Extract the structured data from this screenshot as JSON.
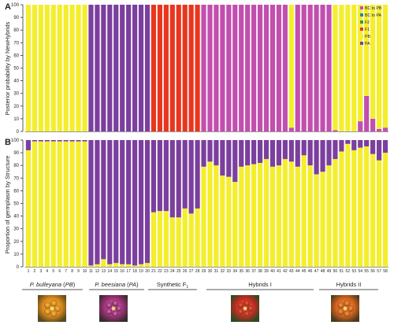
{
  "figure": {
    "group_labels": [
      {
        "name": "P. bulleyana",
        "abbr": "PB",
        "subscript": ""
      },
      {
        "name": "P. beesiana",
        "abbr": "PA",
        "subscript": ""
      },
      {
        "name": "Synthetic F",
        "abbr": "",
        "subscript": "1"
      },
      {
        "name": "Hybrids I",
        "abbr": "",
        "subscript": ""
      },
      {
        "name": "Hybrids II",
        "abbr": "",
        "subscript": ""
      }
    ],
    "photos": [
      {
        "icon": "yellow-orange-primula-flower-photo"
      },
      {
        "icon": "purple-primula-flower-photo"
      },
      {
        "icon": "red-primula-flower-photo"
      },
      {
        "icon": "orange-primula-flower-photo"
      }
    ]
  },
  "chart_data": [
    {
      "panel": "A",
      "type": "bar",
      "stacked": true,
      "ylabel": "Posterior probability by NewHybrids",
      "ylim": [
        0,
        100
      ],
      "yticks": [
        0,
        10,
        20,
        30,
        40,
        50,
        60,
        70,
        80,
        90,
        100
      ],
      "categories": [
        "1",
        "2",
        "3",
        "4",
        "5",
        "6",
        "7",
        "8",
        "9",
        "10",
        "11",
        "12",
        "13",
        "14",
        "15",
        "16",
        "17",
        "18",
        "19",
        "20",
        "21",
        "22",
        "23",
        "24",
        "25",
        "26",
        "27",
        "28",
        "29",
        "30",
        "31",
        "32",
        "33",
        "34",
        "35",
        "36",
        "37",
        "38",
        "39",
        "40",
        "41",
        "42",
        "43",
        "44",
        "45",
        "46",
        "47",
        "48",
        "49",
        "50",
        "51",
        "52",
        "53",
        "54",
        "55",
        "56",
        "57",
        "58"
      ],
      "tick_labels_shown": false,
      "legend": [
        {
          "label": "BC to PB",
          "color": "#c24fae"
        },
        {
          "label": "BC to PA",
          "color": "#2a8a8a"
        },
        {
          "label": "F2",
          "color": "#3a9a3a"
        },
        {
          "label": "F1",
          "color": "#e8361e"
        },
        {
          "label": "PB",
          "color": "#f4ee2c"
        },
        {
          "label": "PA",
          "color": "#7b3f9e"
        }
      ],
      "legend_placement": "top-right",
      "series": [
        {
          "key": "PA",
          "color": "#7b3f9e",
          "values": [
            0,
            0,
            0,
            0,
            0,
            0,
            0,
            0,
            0,
            0,
            100,
            100,
            100,
            100,
            100,
            100,
            100,
            100,
            100,
            100,
            0,
            0,
            0,
            0,
            0,
            0,
            0,
            0,
            0,
            0,
            0,
            0,
            0,
            0,
            0,
            0,
            0,
            0,
            0,
            0,
            0,
            0,
            0,
            0,
            0,
            0,
            0,
            0,
            0,
            0,
            0,
            0,
            0,
            0,
            0,
            0,
            0,
            0
          ]
        },
        {
          "key": "F1",
          "color": "#e8361e",
          "values": [
            0,
            0,
            0,
            0,
            0,
            0,
            0,
            0,
            0,
            0,
            0,
            0,
            0,
            0,
            0,
            0,
            0,
            0,
            0,
            0,
            100,
            100,
            100,
            100,
            100,
            100,
            100,
            100,
            0,
            0,
            0,
            0,
            0,
            0,
            0,
            0,
            0,
            0,
            0,
            0,
            0,
            0,
            0,
            0,
            0,
            0,
            0,
            0,
            0,
            0,
            0,
            0,
            0,
            0,
            0,
            0,
            0,
            0
          ]
        },
        {
          "key": "BC to PB",
          "color": "#c24fae",
          "values": [
            0,
            0,
            0,
            0,
            0,
            0,
            0,
            0,
            0,
            0,
            0,
            0,
            0,
            0,
            0,
            0,
            0,
            0,
            0,
            0,
            0,
            0,
            0,
            0,
            0,
            0,
            0,
            0,
            100,
            100,
            100,
            100,
            100,
            100,
            100,
            100,
            100,
            100,
            100,
            100,
            100,
            100,
            3,
            100,
            100,
            100,
            100,
            100,
            100,
            1,
            0,
            0,
            0,
            8,
            28,
            10,
            2,
            3
          ]
        },
        {
          "key": "PB",
          "color": "#f4ee2c",
          "values": [
            100,
            100,
            100,
            100,
            100,
            100,
            100,
            100,
            100,
            100,
            0,
            0,
            0,
            0,
            0,
            0,
            0,
            0,
            0,
            0,
            0,
            0,
            0,
            0,
            0,
            0,
            0,
            0,
            0,
            0,
            0,
            0,
            0,
            0,
            0,
            0,
            0,
            0,
            0,
            0,
            0,
            0,
            97,
            0,
            0,
            0,
            0,
            0,
            0,
            99,
            100,
            100,
            100,
            92,
            72,
            90,
            98,
            97
          ]
        }
      ]
    },
    {
      "panel": "B",
      "type": "bar",
      "stacked": true,
      "ylabel": "Proportion of germplasm by Structure",
      "ylim": [
        0,
        100
      ],
      "yticks": [
        0,
        10,
        20,
        30,
        40,
        50,
        60,
        70,
        80,
        90,
        100
      ],
      "categories": [
        "1",
        "2",
        "3",
        "4",
        "5",
        "6",
        "7",
        "8",
        "9",
        "10",
        "11",
        "12",
        "13",
        "14",
        "15",
        "16",
        "17",
        "18",
        "19",
        "20",
        "21",
        "22",
        "23",
        "24",
        "25",
        "26",
        "27",
        "28",
        "29",
        "30",
        "31",
        "32",
        "33",
        "34",
        "35",
        "36",
        "37",
        "38",
        "39",
        "40",
        "41",
        "42",
        "43",
        "44",
        "45",
        "46",
        "47",
        "48",
        "49",
        "50",
        "51",
        "52",
        "53",
        "54",
        "55",
        "56",
        "57",
        "58"
      ],
      "tick_labels_shown": true,
      "series": [
        {
          "key": "PB",
          "color": "#f4ee2c",
          "values": [
            92,
            99,
            99,
            99,
            99,
            99,
            99,
            99,
            99,
            99,
            1,
            2,
            6,
            2,
            3,
            2,
            2,
            1,
            2,
            3,
            43,
            44,
            44,
            39,
            39,
            46,
            42,
            46,
            79,
            83,
            80,
            72,
            71,
            67,
            79,
            80,
            81,
            82,
            85,
            79,
            80,
            85,
            83,
            79,
            88,
            80,
            73,
            75,
            80,
            85,
            91,
            97,
            92,
            94,
            95,
            89,
            84,
            90
          ]
        },
        {
          "key": "PA",
          "color": "#7b3f9e",
          "values": [
            8,
            1,
            1,
            1,
            1,
            1,
            1,
            1,
            1,
            1,
            99,
            98,
            94,
            98,
            97,
            98,
            98,
            99,
            98,
            97,
            57,
            56,
            56,
            61,
            61,
            54,
            58,
            54,
            21,
            17,
            20,
            28,
            29,
            33,
            21,
            20,
            19,
            18,
            15,
            21,
            20,
            15,
            17,
            21,
            12,
            20,
            27,
            25,
            20,
            15,
            9,
            3,
            8,
            6,
            5,
            11,
            16,
            10
          ]
        }
      ]
    }
  ]
}
